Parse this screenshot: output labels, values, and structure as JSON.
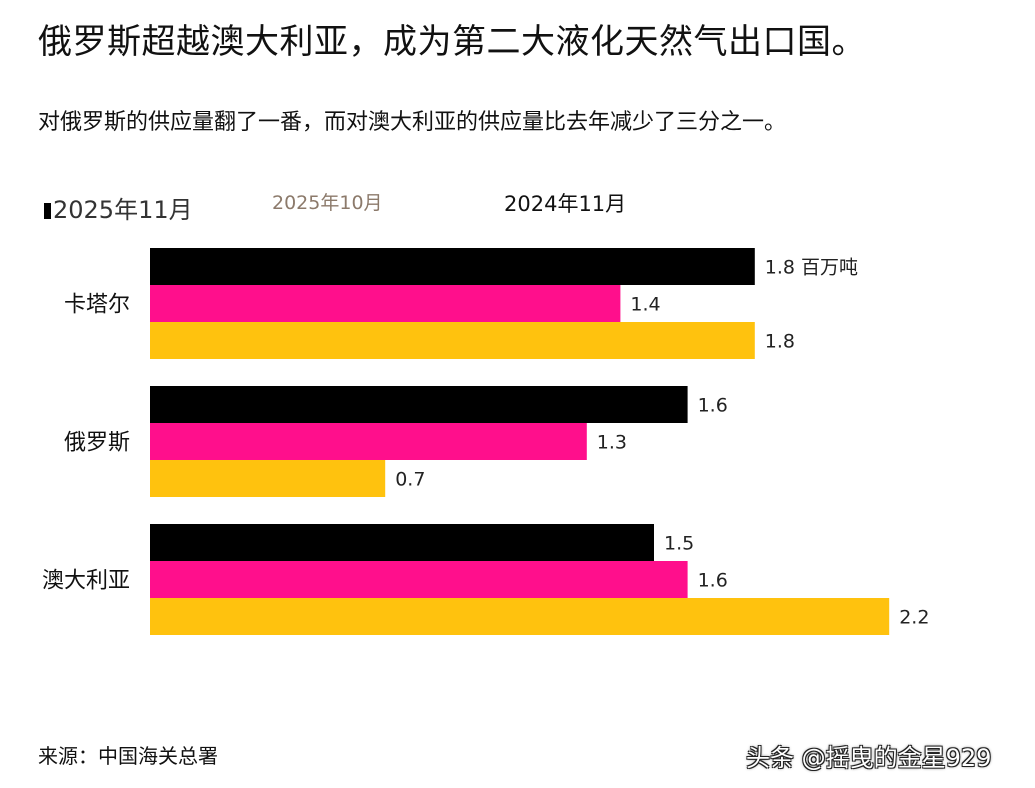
{
  "headline": "俄罗斯超越澳大利亚，成为第二大液化天然气出口国。",
  "subheadline": "对俄罗斯的供应量翻了一番，而对澳大利亚的供应量比去年减少了三分之一。",
  "source": "来源：中国海关总署",
  "watermark": "头条 @摇曳的金星929",
  "chart_data": {
    "type": "bar",
    "orientation": "horizontal",
    "categories": [
      "卡塔尔",
      "俄罗斯",
      "澳大利亚"
    ],
    "series": [
      {
        "name": "2025年11月",
        "color": "#000000",
        "values": [
          1.8,
          1.6,
          1.5
        ]
      },
      {
        "name": "2025年10月",
        "color": "#ff0f8c",
        "values": [
          1.4,
          1.3,
          1.6
        ]
      },
      {
        "name": "2024年11月",
        "color": "#ffc20e",
        "values": [
          1.8,
          0.7,
          2.2
        ]
      }
    ],
    "value_labels": [
      [
        "1.8 百万吨",
        "1.4",
        "1.8"
      ],
      [
        "1.6",
        "1.3",
        "0.7"
      ],
      [
        "1.5",
        "1.6",
        "2.2"
      ]
    ],
    "legend_position": "top-left",
    "grid": false
  }
}
